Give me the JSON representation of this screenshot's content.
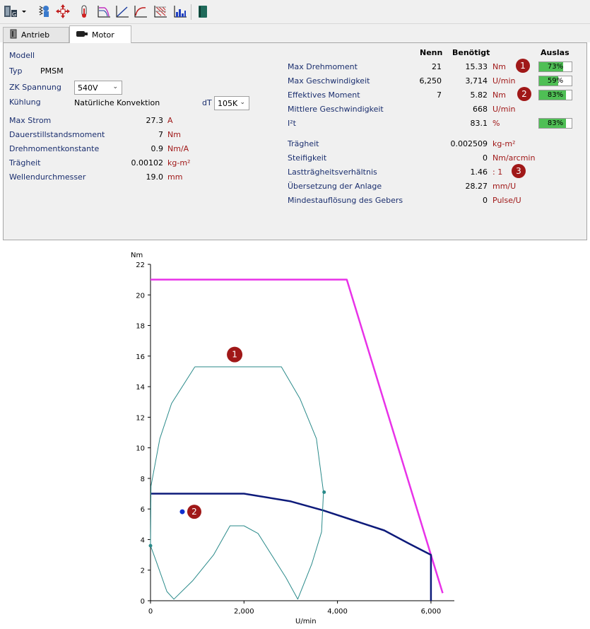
{
  "toolbar": {
    "icons": [
      "motor-selector-icon",
      "dropdown-arrow-icon",
      "load-inertia-icon",
      "move-cross-icon",
      "thermometer-icon",
      "speed-torque-curve-icon",
      "linear-curve-icon",
      "decay-curve-icon",
      "grid-hatch-icon",
      "bar-chart-icon",
      "book-icon"
    ]
  },
  "tabs": [
    {
      "label": "Antrieb",
      "icon": "drive-icon",
      "active": false
    },
    {
      "label": "Motor",
      "icon": "motor-icon",
      "active": true
    }
  ],
  "left": {
    "model_label": "Modell",
    "type_label": "Typ",
    "type_value": "PMSM",
    "zk_label": "ZK Spannung",
    "zk_value": "540V",
    "cooling_label": "Kühlung",
    "cooling_value": "Natürliche Konvektion",
    "dt_label": "dT",
    "dt_value": "105K",
    "rows": [
      {
        "label": "Max Strom",
        "value": "27.3",
        "unit": "A"
      },
      {
        "label": "Dauerstillstandsmoment",
        "value": "7",
        "unit": "Nm"
      },
      {
        "label": "Drehmomentkonstante",
        "value": "0.9",
        "unit": "Nm/A"
      },
      {
        "label": "Trägheit",
        "value": "0.00102",
        "unit": "kg-m²"
      },
      {
        "label": "Wellendurchmesser",
        "value": "19.0",
        "unit": "mm"
      }
    ]
  },
  "right": {
    "headers": {
      "nenn": "Nenn",
      "benoetigt": "Benötigt",
      "auslas": "Auslas"
    },
    "rows": [
      {
        "label": "Max Drehmoment",
        "nenn": "21",
        "benoetigt": "15.33",
        "unit": "Nm",
        "badge": "1",
        "auslas": "73%",
        "fill": 0.73
      },
      {
        "label": "Max Geschwindigkeit",
        "nenn": "6,250",
        "benoetigt": "3,714",
        "unit": "U/min",
        "badge": "",
        "auslas": "59%",
        "fill": 0.59
      },
      {
        "label": "Effektives Moment",
        "nenn": "7",
        "benoetigt": "5.82",
        "unit": "Nm",
        "badge": "2",
        "auslas": "83%",
        "fill": 0.83
      },
      {
        "label": "Mittlere Geschwindigkeit",
        "nenn": "",
        "benoetigt": "668",
        "unit": "U/min",
        "badge": "",
        "auslas": "",
        "fill": 0
      },
      {
        "label": "I²t",
        "nenn": "",
        "benoetigt": "83.1",
        "unit": "%",
        "badge": "",
        "auslas": "83%",
        "fill": 0.83
      }
    ],
    "rows2": [
      {
        "label": "Trägheit",
        "value": "0.002509",
        "unit": "kg-m²",
        "badge": ""
      },
      {
        "label": "Steifigkeit",
        "value": "0",
        "unit": "Nm/arcmin",
        "badge": ""
      },
      {
        "label": "Lastträgheitsverhältnis",
        "value": "1.46",
        "unit": ": 1",
        "badge": "3"
      },
      {
        "label": "Übersetzung der Anlage",
        "value": "28.27",
        "unit": "mm/U",
        "badge": ""
      },
      {
        "label": "Mindestauflösung des Gebers",
        "value": "0",
        "unit": "Pulse/U",
        "badge": ""
      }
    ]
  },
  "colors": {
    "label_blue": "#1a2e6e",
    "unit_red": "#a01818",
    "badge_red": "#a01818",
    "bar_green": "#4fbf55",
    "peak_magenta": "#e832e8",
    "continuous_navy": "#0d1a7a",
    "profile_teal": "#2a8a8a",
    "point_blue": "#1030d0"
  },
  "chart_data": {
    "type": "line",
    "xlabel": "U/min",
    "ylabel": "Nm",
    "xlim": [
      0,
      6500
    ],
    "ylim": [
      0,
      22
    ],
    "x_ticks": [
      0,
      2000,
      4000,
      6000
    ],
    "x_tick_labels": [
      "0",
      "2,000",
      "4,000",
      "6,000"
    ],
    "y_ticks": [
      0,
      2,
      4,
      6,
      8,
      10,
      12,
      14,
      16,
      18,
      20,
      22
    ],
    "y_tick_labels": [
      "0",
      "2",
      "4",
      "6",
      "8",
      "10",
      "12",
      "14",
      "16",
      "18",
      "20",
      "22"
    ],
    "grid": false,
    "series": [
      {
        "role": "peak",
        "points": [
          [
            0,
            21
          ],
          [
            4200,
            21
          ],
          [
            6000,
            3
          ],
          [
            6250,
            0.5
          ]
        ]
      },
      {
        "role": "continuous",
        "points": [
          [
            0,
            7
          ],
          [
            2000,
            7
          ],
          [
            3000,
            6.5
          ],
          [
            3700,
            5.9
          ],
          [
            4400,
            5.2
          ],
          [
            5000,
            4.6
          ],
          [
            5550,
            3.7
          ],
          [
            6000,
            3
          ],
          [
            6000,
            0
          ]
        ]
      },
      {
        "role": "profile",
        "points": [
          [
            950,
            15.3
          ],
          [
            2800,
            15.3
          ],
          [
            3200,
            13.2
          ],
          [
            3550,
            10.6
          ],
          [
            3700,
            7.1
          ],
          [
            3660,
            4.5
          ],
          [
            3450,
            2.4
          ],
          [
            3150,
            0.1
          ],
          [
            2900,
            1.5
          ],
          [
            2300,
            4.4
          ],
          [
            2000,
            4.9
          ],
          [
            1700,
            4.9
          ],
          [
            1350,
            3.0
          ],
          [
            900,
            1.3
          ],
          [
            500,
            0.1
          ],
          [
            350,
            0.6
          ],
          [
            120,
            2.6
          ],
          [
            0,
            3.6
          ],
          [
            10,
            7.5
          ],
          [
            200,
            10.6
          ],
          [
            450,
            12.9
          ],
          [
            950,
            15.3
          ]
        ]
      }
    ],
    "points": [
      {
        "x": 680,
        "y": 5.82,
        "label": "2",
        "role": "rms"
      },
      {
        "x": 3714,
        "y": 7.1,
        "label": "",
        "role": "max-speed"
      },
      {
        "x": 0,
        "y": 3.6,
        "label": "",
        "role": "start"
      }
    ],
    "annotations": [
      {
        "label": "1",
        "x": 1800,
        "y": 16.1
      }
    ]
  }
}
